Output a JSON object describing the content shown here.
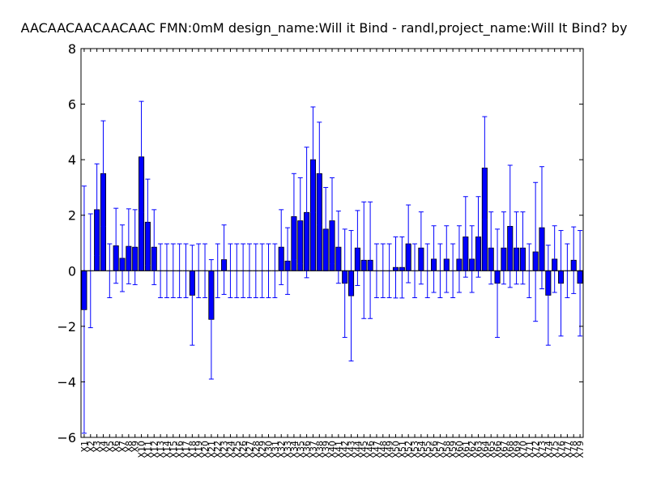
{
  "chart_data": {
    "type": "bar",
    "title": "AACAACAACAACAAC  FMN:0mM  design_name:Will it Bind - randl,project_name:Will It Bind? by",
    "xlabel": "",
    "ylabel": "",
    "ylim": [
      -6,
      8
    ],
    "yticks": [
      -6,
      -4,
      -2,
      0,
      2,
      4,
      6,
      8
    ],
    "grid": false,
    "bar_color": "#0000ff",
    "error_color": "#0000ff",
    "categories": [
      "X1",
      "X2",
      "X3",
      "X4",
      "X5",
      "X6",
      "X7",
      "X8",
      "X9",
      "X10",
      "X11",
      "X12",
      "X13",
      "X14",
      "X15",
      "X16",
      "X17",
      "X18",
      "X19",
      "X20",
      "X21",
      "X22",
      "X23",
      "X24",
      "X25",
      "X26",
      "X27",
      "X28",
      "X29",
      "X30",
      "X31",
      "X32",
      "X33",
      "X34",
      "X35",
      "X36",
      "X37",
      "X38",
      "X39",
      "X40",
      "X41",
      "X42",
      "X43",
      "X44",
      "X45",
      "X46",
      "X47",
      "X48",
      "X49",
      "X50",
      "X51",
      "X52",
      "X53",
      "X54",
      "X55",
      "X56",
      "X57",
      "X58",
      "X59",
      "X60",
      "X61",
      "X62",
      "X63",
      "X64",
      "X65",
      "X66",
      "X67",
      "X68",
      "X69",
      "X70",
      "X71",
      "X72",
      "X73",
      "X74",
      "X75",
      "X76",
      "X77",
      "X78",
      "X79"
    ],
    "values": [
      -1.4,
      0.0,
      2.2,
      3.5,
      0.0,
      0.9,
      0.45,
      0.88,
      0.85,
      4.1,
      1.75,
      0.85,
      0.0,
      0.0,
      0.0,
      0.0,
      0.0,
      -0.88,
      0.0,
      0.0,
      -1.75,
      0.0,
      0.4,
      0.0,
      0.0,
      0.0,
      0.0,
      0.0,
      0.0,
      0.0,
      0.0,
      0.85,
      0.35,
      1.95,
      1.8,
      2.1,
      4.0,
      3.5,
      1.5,
      1.8,
      0.85,
      -0.45,
      -0.9,
      0.82,
      0.38,
      0.38,
      0.0,
      0.0,
      0.0,
      0.12,
      0.12,
      0.97,
      0.0,
      0.82,
      0.0,
      0.42,
      0.0,
      0.42,
      0.0,
      0.42,
      1.22,
      0.42,
      1.22,
      3.7,
      0.82,
      -0.45,
      0.82,
      1.6,
      0.82,
      0.82,
      0.0,
      0.68,
      1.55,
      -0.88,
      0.42,
      -0.45,
      0.0,
      0.38,
      -0.45
    ],
    "errors": [
      4.45,
      2.05,
      1.65,
      1.9,
      0.97,
      1.35,
      1.2,
      1.35,
      1.35,
      2.0,
      1.55,
      1.35,
      0.97,
      0.97,
      0.97,
      0.97,
      0.97,
      1.8,
      0.97,
      0.97,
      2.15,
      0.97,
      1.25,
      0.97,
      0.97,
      0.97,
      0.97,
      0.97,
      0.97,
      0.97,
      0.97,
      1.35,
      1.2,
      1.55,
      1.55,
      2.35,
      1.9,
      1.85,
      1.5,
      1.55,
      1.3,
      1.95,
      2.35,
      1.35,
      2.1,
      2.1,
      0.97,
      0.97,
      0.97,
      1.1,
      1.1,
      1.4,
      0.97,
      1.3,
      0.97,
      1.2,
      0.97,
      1.2,
      0.97,
      1.2,
      1.45,
      1.2,
      1.45,
      1.85,
      1.3,
      1.95,
      1.3,
      2.2,
      1.3,
      1.3,
      0.97,
      2.5,
      2.2,
      1.8,
      1.2,
      1.9,
      0.97,
      1.2,
      1.9
    ]
  }
}
